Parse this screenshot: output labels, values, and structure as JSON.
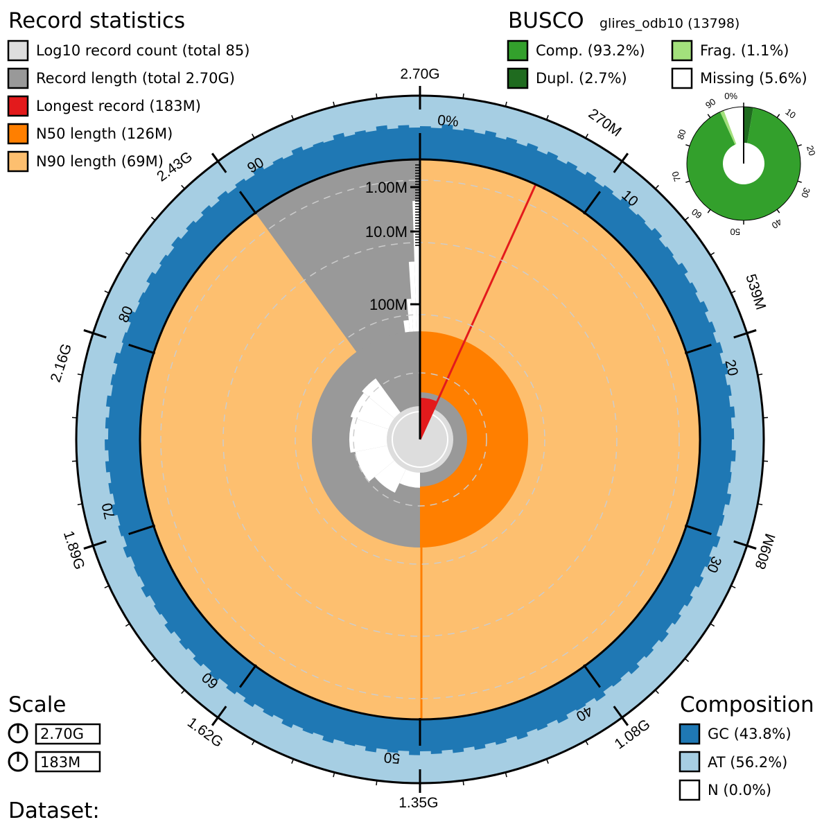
{
  "record_statistics": {
    "title": "Record statistics",
    "legend": [
      {
        "label": "Log10 record count (total 85)",
        "color": "#dddddd"
      },
      {
        "label": "Record length (total 2.70G)",
        "color": "#999999"
      },
      {
        "label": "Longest record (183M)",
        "color": "#e31a1c"
      },
      {
        "label": "N50 length (126M)",
        "color": "#ff7f00"
      },
      {
        "label": "N90 length (69M)",
        "color": "#fdbf6f"
      }
    ]
  },
  "busco": {
    "title": "BUSCO",
    "lineage": "glires_odb10 (13798)",
    "legend": [
      {
        "label": "Comp. (93.2%)",
        "color": "#33a02c"
      },
      {
        "label": "Dupl. (2.7%)",
        "color": "#1f6b1f"
      },
      {
        "label": "Frag. (1.1%)",
        "color": "#a3e07c"
      },
      {
        "label": "Missing (5.6%)",
        "color": "#ffffff"
      }
    ],
    "ticks": [
      "0%",
      "10",
      "20",
      "30",
      "40",
      "50",
      "60",
      "70",
      "80",
      "90"
    ]
  },
  "scale": {
    "title": "Scale",
    "items": [
      "2.70G",
      "183M"
    ]
  },
  "composition": {
    "title": "Composition",
    "legend": [
      {
        "label": "GC (43.8%)",
        "color": "#1f78b4"
      },
      {
        "label": "AT (56.2%)",
        "color": "#a6cee3"
      },
      {
        "label": "N (0.0%)",
        "color": "#ffffff"
      }
    ]
  },
  "dataset": {
    "label": "Dataset:"
  },
  "chart_data": {
    "type": "snail",
    "total_length": 2.7,
    "total_length_unit": "G",
    "record_count": 85,
    "longest_record_M": 183,
    "n50_M": 126,
    "n90_M": 69,
    "n50_percent": 50,
    "n90_percent": 90,
    "outer_tick_labels": [
      "2.70G",
      "270M",
      "539M",
      "809M",
      "1.08G",
      "1.35G",
      "1.62G",
      "1.89G",
      "2.16G",
      "2.43G"
    ],
    "inner_percent_labels": [
      "0%",
      "10",
      "20",
      "30",
      "40",
      "50",
      "60",
      "70",
      "80",
      "90"
    ],
    "radial_axis_labels": [
      "1.00M",
      "10.0M",
      "100M"
    ],
    "gc_percent": 43.8,
    "at_percent": 56.2,
    "n_percent": 0.0,
    "busco_percent": {
      "complete": 93.2,
      "duplicated": 2.7,
      "fragmented": 1.1,
      "missing": 5.6
    }
  }
}
